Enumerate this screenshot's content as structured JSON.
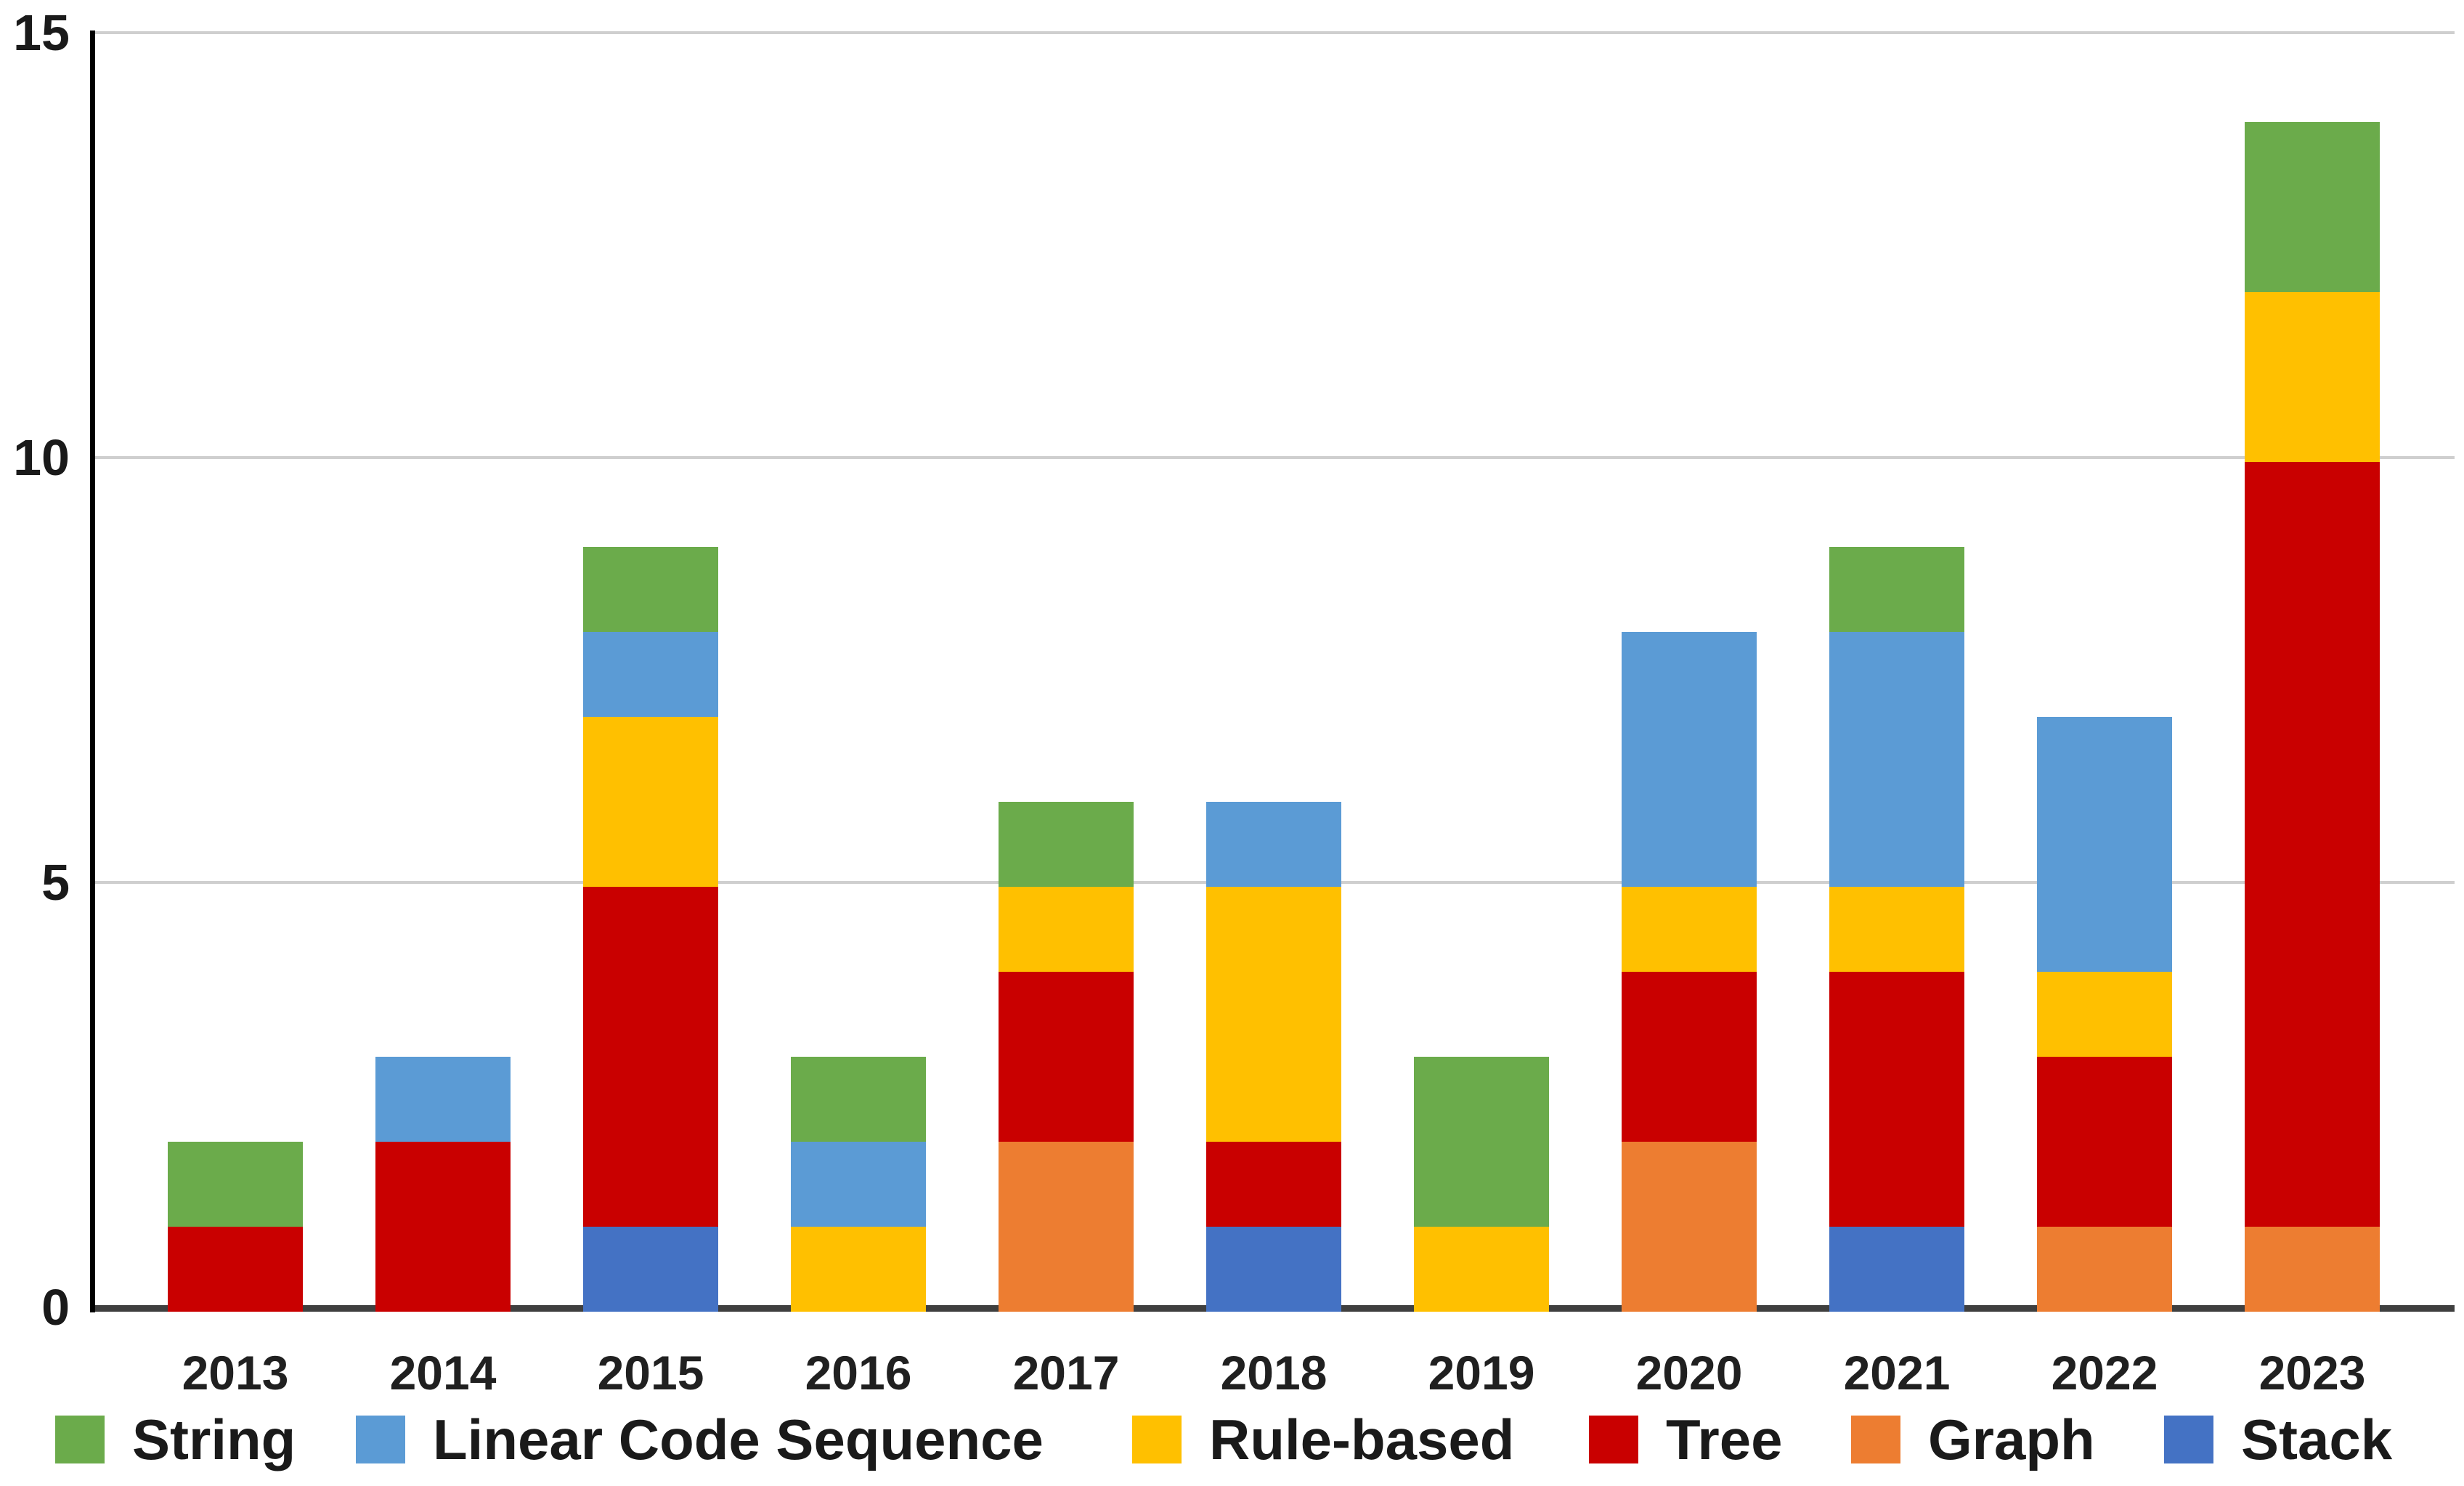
{
  "chart_data": {
    "type": "bar",
    "stacked": true,
    "title": "",
    "xlabel": "",
    "ylabel": "",
    "categories": [
      "2013",
      "2014",
      "2015",
      "2016",
      "2017",
      "2018",
      "2019",
      "2020",
      "2021",
      "2022",
      "2023"
    ],
    "series": [
      {
        "name": "String",
        "color": "#6BAB4B",
        "values": [
          1,
          0,
          1,
          1,
          1,
          0,
          2,
          0,
          1,
          0,
          2
        ]
      },
      {
        "name": "Linear Code Sequence",
        "color": "#5B9BD5",
        "values": [
          0,
          1,
          1,
          1,
          0,
          1,
          0,
          3,
          3,
          3,
          0
        ]
      },
      {
        "name": "Rule-based",
        "color": "#FFC000",
        "values": [
          0,
          0,
          2,
          1,
          1,
          3,
          1,
          1,
          1,
          1,
          2
        ]
      },
      {
        "name": "Tree",
        "color": "#C90000",
        "values": [
          1,
          2,
          4,
          0,
          2,
          1,
          0,
          2,
          3,
          2,
          9
        ]
      },
      {
        "name": "Graph",
        "color": "#ED7D31",
        "values": [
          0,
          0,
          0,
          0,
          2,
          0,
          0,
          2,
          0,
          1,
          1
        ]
      },
      {
        "name": "Stack",
        "color": "#4472C4",
        "values": [
          0,
          0,
          1,
          0,
          0,
          1,
          0,
          0,
          1,
          0,
          0
        ]
      }
    ],
    "stack_order_bottom_to_top": [
      "Stack",
      "Graph",
      "Tree",
      "Rule-based",
      "Linear Code Sequence",
      "String"
    ],
    "totals": [
      2,
      3,
      9,
      3,
      6,
      6,
      3,
      8,
      9,
      7,
      14
    ],
    "y_axis": {
      "min": 0,
      "max": 15,
      "ticks": [
        "0",
        "5",
        "10",
        "15"
      ],
      "gridlines_at": [
        5,
        10,
        15
      ]
    },
    "legend": {
      "position": "bottom",
      "labels": [
        "String",
        "Linear Code Sequence",
        "Rule-based",
        "Tree",
        "Graph",
        "Stack"
      ]
    },
    "grid": "horizontal-only",
    "colors": {
      "gridline": "#CFCFCF",
      "x_axis_line": "#3F3F3F",
      "y_axis_line": "#000000",
      "tick_text": "#1A1A1A",
      "legend_text": "#1A1A1A",
      "background": "#FFFFFF"
    }
  }
}
